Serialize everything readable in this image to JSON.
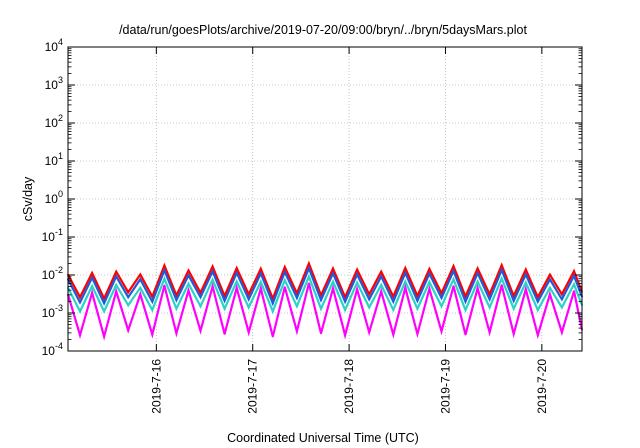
{
  "chart_data": {
    "type": "line",
    "title": "/data/run/goesPlots/archive/2019-07-20/09:00/bryn/../bryn/5daysMars.plot",
    "xlabel": "Coordinated Universal Time (UTC)",
    "ylabel": "cSv/day",
    "y_scale": "log",
    "ylim": [
      0.0001,
      10000
    ],
    "xlim": [
      "2019-07-15T02:00",
      "2019-07-20T10:00"
    ],
    "x_ticks": [
      "2019-7-16",
      "2019-7-17",
      "2019-7-18",
      "2019-7-19",
      "2019-7-20"
    ],
    "y_ticks": [
      {
        "base": "10",
        "exp": "-4"
      },
      {
        "base": "10",
        "exp": "-3"
      },
      {
        "base": "10",
        "exp": "-2"
      },
      {
        "base": "10",
        "exp": "-1"
      },
      {
        "base": "10",
        "exp": "0"
      },
      {
        "base": "10",
        "exp": "1"
      },
      {
        "base": "10",
        "exp": "2"
      },
      {
        "base": "10",
        "exp": "3"
      },
      {
        "base": "10",
        "exp": "4"
      }
    ],
    "grid": true,
    "legend": "none",
    "x": [
      "2019-07-15T02:00",
      "2019-07-15T05:00",
      "2019-07-15T08:00",
      "2019-07-15T11:00",
      "2019-07-15T14:00",
      "2019-07-15T17:00",
      "2019-07-15T20:00",
      "2019-07-15T23:00",
      "2019-07-16T02:00",
      "2019-07-16T05:00",
      "2019-07-16T08:00",
      "2019-07-16T11:00",
      "2019-07-16T14:00",
      "2019-07-16T17:00",
      "2019-07-16T20:00",
      "2019-07-16T23:00",
      "2019-07-17T02:00",
      "2019-07-17T05:00",
      "2019-07-17T08:00",
      "2019-07-17T11:00",
      "2019-07-17T14:00",
      "2019-07-17T17:00",
      "2019-07-17T20:00",
      "2019-07-17T23:00",
      "2019-07-18T02:00",
      "2019-07-18T05:00",
      "2019-07-18T08:00",
      "2019-07-18T11:00",
      "2019-07-18T14:00",
      "2019-07-18T17:00",
      "2019-07-18T20:00",
      "2019-07-18T23:00",
      "2019-07-19T02:00",
      "2019-07-19T05:00",
      "2019-07-19T08:00",
      "2019-07-19T11:00",
      "2019-07-19T14:00",
      "2019-07-19T17:00",
      "2019-07-19T20:00",
      "2019-07-19T23:00",
      "2019-07-20T02:00",
      "2019-07-20T05:00",
      "2019-07-20T08:00",
      "2019-07-20T10:00"
    ],
    "series": [
      {
        "color": "#ff0000",
        "values": [
          0.0102,
          0.0026,
          0.0113,
          0.0024,
          0.0122,
          0.0035,
          0.0103,
          0.0027,
          0.0178,
          0.0029,
          0.0131,
          0.0034,
          0.0167,
          0.0028,
          0.0152,
          0.0031,
          0.0146,
          0.0024,
          0.0161,
          0.0033,
          0.0201,
          0.0029,
          0.0148,
          0.0026,
          0.0139,
          0.0031,
          0.0122,
          0.0027,
          0.0152,
          0.0028,
          0.0144,
          0.0033,
          0.0171,
          0.0027,
          0.0149,
          0.0031,
          0.0181,
          0.0028,
          0.0139,
          0.0026,
          0.0102,
          0.0031,
          0.0126,
          0.0036
        ]
      },
      {
        "color": "#1e5adc",
        "values": [
          0.0077,
          0.0019,
          0.0085,
          0.0018,
          0.0092,
          0.0026,
          0.0077,
          0.002,
          0.0134,
          0.0022,
          0.0098,
          0.0026,
          0.0125,
          0.0021,
          0.0114,
          0.0023,
          0.011,
          0.0018,
          0.0121,
          0.0025,
          0.0151,
          0.0022,
          0.0111,
          0.002,
          0.0104,
          0.0023,
          0.0092,
          0.002,
          0.0114,
          0.0021,
          0.0108,
          0.0025,
          0.0128,
          0.002,
          0.0112,
          0.0023,
          0.0136,
          0.0021,
          0.0104,
          0.002,
          0.0077,
          0.0023,
          0.0095,
          0.0027
        ]
      },
      {
        "color": "#2ad2c8",
        "values": [
          0.0046,
          0.0011,
          0.0051,
          0.0011,
          0.0055,
          0.0016,
          0.0046,
          0.0012,
          0.008,
          0.0013,
          0.0059,
          0.0015,
          0.0075,
          0.0013,
          0.0068,
          0.0014,
          0.0066,
          0.0011,
          0.0073,
          0.0015,
          0.009,
          0.0013,
          0.0067,
          0.0012,
          0.0063,
          0.0014,
          0.0055,
          0.0012,
          0.0068,
          0.0013,
          0.0065,
          0.0015,
          0.0077,
          0.0012,
          0.0067,
          0.0014,
          0.0081,
          0.0013,
          0.0063,
          0.0012,
          0.0046,
          0.0014,
          0.0057,
          0.0016
        ]
      },
      {
        "color": "#ff00ff",
        "values": [
          0.0031,
          0.00026,
          0.0034,
          0.00024,
          0.0037,
          0.00035,
          0.0031,
          0.00027,
          0.0053,
          0.00029,
          0.0039,
          0.00034,
          0.005,
          0.00028,
          0.0046,
          0.00031,
          0.0044,
          0.00024,
          0.0048,
          0.00033,
          0.006,
          0.00029,
          0.0044,
          0.00026,
          0.0042,
          0.00031,
          0.0037,
          0.00027,
          0.0046,
          0.00028,
          0.0043,
          0.00033,
          0.0051,
          0.00027,
          0.0045,
          0.00031,
          0.0054,
          0.00028,
          0.0042,
          0.00026,
          0.0031,
          0.00031,
          0.0038,
          0.00036
        ]
      }
    ]
  }
}
